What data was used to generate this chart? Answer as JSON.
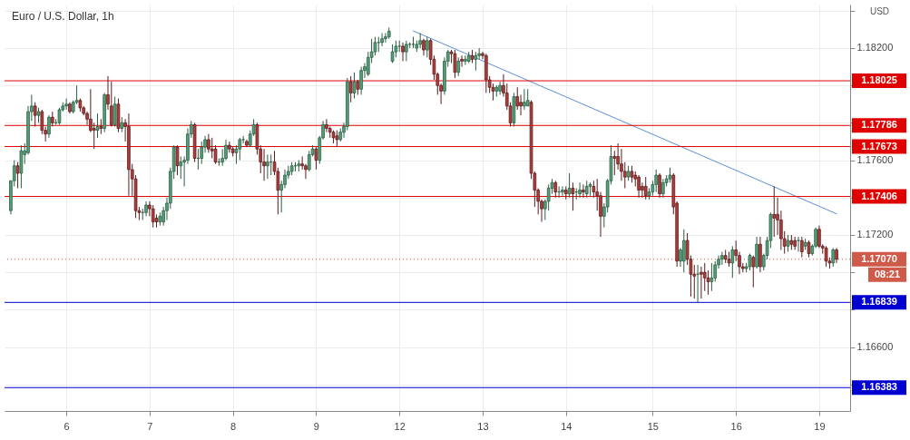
{
  "chart_data": {
    "type": "candlestick",
    "title": "Euro / U.S. Dollar, 1h",
    "ylabel": "USD",
    "categories": [
      null,
      null,
      null,
      null,
      null,
      null,
      null,
      null,
      null,
      null,
      null,
      null,
      null,
      null,
      null,
      null,
      "6",
      null,
      null,
      null,
      null,
      null,
      null,
      null,
      null,
      null,
      null,
      null,
      null,
      null,
      null,
      null,
      null,
      null,
      null,
      null,
      null,
      null,
      null,
      null,
      "7",
      null,
      null,
      null,
      null,
      null,
      null,
      null,
      null,
      null,
      null,
      null,
      null,
      null,
      null,
      null,
      null,
      null,
      null,
      null,
      null,
      null,
      null,
      null,
      "8",
      null,
      null,
      null,
      null,
      null,
      null,
      null,
      null,
      null,
      null,
      null,
      null,
      null,
      null,
      null,
      null,
      null,
      null,
      null,
      null,
      null,
      null,
      null,
      "9",
      null,
      null,
      null,
      null,
      null,
      null,
      null,
      null,
      null,
      null,
      null,
      null,
      null,
      null,
      null,
      null,
      null,
      null,
      null,
      null,
      null,
      null,
      null,
      "12",
      null,
      null,
      null,
      null,
      null,
      null,
      null,
      null,
      null,
      null,
      null,
      null,
      null,
      null,
      null,
      null,
      null,
      null,
      null,
      null,
      null,
      null,
      null,
      "13",
      null,
      null,
      null,
      null,
      null,
      null,
      null,
      null,
      null,
      null,
      null,
      null,
      null,
      null,
      null,
      null,
      null,
      null,
      null,
      null,
      null,
      null,
      null,
      "14",
      null,
      null,
      null,
      null,
      null,
      null,
      null,
      null,
      null,
      null,
      null,
      null,
      null,
      null,
      null,
      null,
      null,
      null,
      null,
      null,
      null,
      null,
      null,
      null,
      "15",
      null,
      null,
      null,
      null,
      null,
      null,
      null,
      null,
      null,
      null,
      null,
      null,
      null,
      null,
      null,
      null,
      null,
      null,
      null,
      null,
      null,
      null,
      null,
      "16",
      null,
      null,
      null,
      null,
      null,
      null,
      null,
      null,
      null,
      null,
      null,
      null,
      null,
      null,
      null,
      null,
      null,
      null,
      null,
      null,
      null,
      null,
      null,
      "19",
      null,
      null,
      null,
      null,
      null
    ],
    "ohlc": [
      [
        1.1733,
        1.1749,
        1.1731,
        1.1749
      ],
      [
        1.1749,
        1.176,
        1.1746,
        1.1757
      ],
      [
        1.1757,
        1.1759,
        1.1745,
        1.1753
      ],
      [
        1.1753,
        1.1768,
        1.1745,
        1.1765
      ],
      [
        1.1763,
        1.1769,
        1.1758,
        1.1765
      ],
      [
        1.1764,
        1.1789,
        1.1763,
        1.1786
      ],
      [
        1.1786,
        1.1795,
        1.1781,
        1.1789
      ],
      [
        1.1789,
        1.1791,
        1.1778,
        1.1784
      ],
      [
        1.1784,
        1.1788,
        1.178,
        1.1786
      ],
      [
        1.1786,
        1.1787,
        1.1774,
        1.1776
      ],
      [
        1.1776,
        1.1778,
        1.177,
        1.1774
      ],
      [
        1.1774,
        1.1784,
        1.1772,
        1.1783
      ],
      [
        1.1783,
        1.1786,
        1.1778,
        1.178
      ],
      [
        1.178,
        1.1782,
        1.1779,
        1.178
      ],
      [
        1.178,
        1.1788,
        1.1779,
        1.1787
      ],
      [
        1.1787,
        1.1791,
        1.1786,
        1.1789
      ],
      [
        1.1789,
        1.1793,
        1.1787,
        1.179
      ],
      [
        1.179,
        1.1791,
        1.1785,
        1.1786
      ],
      [
        1.1786,
        1.1792,
        1.1785,
        1.1791
      ],
      [
        1.1791,
        1.18,
        1.179,
        1.1792
      ],
      [
        1.1792,
        1.1793,
        1.1786,
        1.1788
      ],
      [
        1.1788,
        1.1789,
        1.1784,
        1.1785
      ],
      [
        1.1785,
        1.1786,
        1.1779,
        1.1782
      ],
      [
        1.1782,
        1.1798,
        1.1775,
        1.1776
      ],
      [
        1.1777,
        1.178,
        1.1766,
        1.1776
      ],
      [
        1.1776,
        1.1785,
        1.1772,
        1.1778
      ],
      [
        1.1778,
        1.1782,
        1.1774,
        1.1777
      ],
      [
        1.1777,
        1.1796,
        1.1775,
        1.1795
      ],
      [
        1.1795,
        1.1805,
        1.1787,
        1.179
      ],
      [
        1.1789,
        1.1802,
        1.1778,
        1.1779
      ],
      [
        1.1779,
        1.1794,
        1.1778,
        1.179
      ],
      [
        1.179,
        1.1793,
        1.1775,
        1.1777
      ],
      [
        1.1777,
        1.1783,
        1.1775,
        1.178
      ],
      [
        1.178,
        1.1782,
        1.177,
        1.1778
      ],
      [
        1.1778,
        1.1785,
        1.1741,
        1.1755
      ],
      [
        1.1755,
        1.1758,
        1.1741,
        1.175
      ],
      [
        1.175,
        1.1752,
        1.1729,
        1.1733
      ],
      [
        1.1733,
        1.1735,
        1.1728,
        1.1732
      ],
      [
        1.1732,
        1.1734,
        1.1728,
        1.1732
      ],
      [
        1.1732,
        1.1738,
        1.173,
        1.1736
      ],
      [
        1.1736,
        1.1738,
        1.173,
        1.1734
      ],
      [
        1.1734,
        1.1736,
        1.1724,
        1.1727
      ],
      [
        1.1729,
        1.1731,
        1.1724,
        1.1727
      ],
      [
        1.1727,
        1.1732,
        1.1725,
        1.173
      ],
      [
        1.1727,
        1.1735,
        1.1725,
        1.1733
      ],
      [
        1.1733,
        1.174,
        1.1728,
        1.1737
      ],
      [
        1.1737,
        1.1756,
        1.1734,
        1.1754
      ],
      [
        1.1754,
        1.1768,
        1.175,
        1.1767
      ],
      [
        1.1767,
        1.1768,
        1.1752,
        1.1757
      ],
      [
        1.1757,
        1.1762,
        1.175,
        1.1759
      ],
      [
        1.1759,
        1.1762,
        1.1746,
        1.176
      ],
      [
        1.176,
        1.1777,
        1.1758,
        1.1774
      ],
      [
        1.1774,
        1.1781,
        1.1772,
        1.1779
      ],
      [
        1.1779,
        1.178,
        1.1759,
        1.1761
      ],
      [
        1.1761,
        1.1766,
        1.1755,
        1.1761
      ],
      [
        1.1761,
        1.177,
        1.1758,
        1.1767
      ],
      [
        1.1767,
        1.1773,
        1.1764,
        1.1771
      ],
      [
        1.1771,
        1.1774,
        1.1764,
        1.1766
      ],
      [
        1.1766,
        1.1772,
        1.1761,
        1.1765
      ],
      [
        1.1766,
        1.1768,
        1.1758,
        1.1759
      ],
      [
        1.1759,
        1.1761,
        1.1757,
        1.1759
      ],
      [
        1.1759,
        1.1766,
        1.1757,
        1.1761
      ],
      [
        1.1761,
        1.1771,
        1.176,
        1.1768
      ],
      [
        1.1768,
        1.177,
        1.1764,
        1.1766
      ],
      [
        1.1766,
        1.1767,
        1.1762,
        1.1764
      ],
      [
        1.1764,
        1.1768,
        1.1758,
        1.1766
      ],
      [
        1.1766,
        1.1772,
        1.176,
        1.1771
      ],
      [
        1.1771,
        1.1773,
        1.1769,
        1.1771
      ],
      [
        1.177,
        1.1771,
        1.1767,
        1.1768
      ],
      [
        1.1768,
        1.1776,
        1.1767,
        1.1774
      ],
      [
        1.1774,
        1.1782,
        1.1773,
        1.1779
      ],
      [
        1.1779,
        1.178,
        1.1763,
        1.1766
      ],
      [
        1.1766,
        1.1768,
        1.1753,
        1.1759
      ],
      [
        1.1759,
        1.1766,
        1.1749,
        1.1757
      ],
      [
        1.1757,
        1.1763,
        1.175,
        1.1759
      ],
      [
        1.1759,
        1.1763,
        1.1752,
        1.1759
      ],
      [
        1.1759,
        1.1765,
        1.1752,
        1.1754
      ],
      [
        1.1754,
        1.1756,
        1.1731,
        1.1744
      ],
      [
        1.1744,
        1.1749,
        1.1732,
        1.1747
      ],
      [
        1.1747,
        1.1755,
        1.1745,
        1.1752
      ],
      [
        1.1752,
        1.1757,
        1.175,
        1.1754
      ],
      [
        1.1754,
        1.1759,
        1.1752,
        1.1757
      ],
      [
        1.1757,
        1.1759,
        1.1754,
        1.1757
      ],
      [
        1.1757,
        1.176,
        1.1754,
        1.1758
      ],
      [
        1.1758,
        1.1762,
        1.1755,
        1.1757
      ],
      [
        1.1757,
        1.1758,
        1.175,
        1.1755
      ],
      [
        1.1755,
        1.1765,
        1.1754,
        1.1763
      ],
      [
        1.1763,
        1.1768,
        1.1762,
        1.1766
      ],
      [
        1.1766,
        1.1767,
        1.1755,
        1.176
      ],
      [
        1.176,
        1.1773,
        1.1758,
        1.1772
      ],
      [
        1.1772,
        1.1781,
        1.1771,
        1.1779
      ],
      [
        1.1779,
        1.1782,
        1.1775,
        1.1777
      ],
      [
        1.1777,
        1.1778,
        1.1772,
        1.1775
      ],
      [
        1.1775,
        1.1776,
        1.1769,
        1.1772
      ],
      [
        1.1773,
        1.1776,
        1.1767,
        1.1771
      ],
      [
        1.1771,
        1.1777,
        1.177,
        1.1775
      ],
      [
        1.1775,
        1.178,
        1.1772,
        1.1778
      ],
      [
        1.1778,
        1.1804,
        1.1776,
        1.1802
      ],
      [
        1.1802,
        1.1805,
        1.1791,
        1.1796
      ],
      [
        1.1796,
        1.1807,
        1.1793,
        1.1802
      ],
      [
        1.1802,
        1.1803,
        1.1795,
        1.1798
      ],
      [
        1.1798,
        1.181,
        1.1795,
        1.1808
      ],
      [
        1.1808,
        1.1812,
        1.1804,
        1.181
      ],
      [
        1.1806,
        1.1818,
        1.1805,
        1.1815
      ],
      [
        1.1815,
        1.1825,
        1.1812,
        1.1818
      ],
      [
        1.1818,
        1.1826,
        1.1816,
        1.1823
      ],
      [
        1.1823,
        1.1826,
        1.1818,
        1.1823
      ],
      [
        1.1823,
        1.1828,
        1.1821,
        1.1825
      ],
      [
        1.1825,
        1.1828,
        1.1823,
        1.1826
      ],
      [
        1.1826,
        1.1831,
        1.1825,
        1.1829
      ],
      [
        1.1813,
        1.1822,
        1.1812,
        1.1818
      ],
      [
        1.1818,
        1.1824,
        1.1815,
        1.1821
      ],
      [
        1.1821,
        1.1824,
        1.1818,
        1.1821
      ],
      [
        1.1821,
        1.1823,
        1.1813,
        1.1818
      ],
      [
        1.1818,
        1.1824,
        1.1813,
        1.1822
      ],
      [
        1.1822,
        1.1823,
        1.182,
        1.1822
      ],
      [
        1.1822,
        1.1826,
        1.182,
        1.1822
      ],
      [
        1.182,
        1.1824,
        1.1818,
        1.1822
      ],
      [
        1.1822,
        1.1828,
        1.182,
        1.1824
      ],
      [
        1.1824,
        1.1825,
        1.1816,
        1.1819
      ],
      [
        1.1819,
        1.1826,
        1.1815,
        1.1824
      ],
      [
        1.1824,
        1.1825,
        1.1811,
        1.1814
      ],
      [
        1.1814,
        1.1816,
        1.1803,
        1.1806
      ],
      [
        1.1806,
        1.1807,
        1.1795,
        1.18
      ],
      [
        1.18,
        1.1801,
        1.179,
        1.1797
      ],
      [
        1.1797,
        1.1815,
        1.1795,
        1.1813
      ],
      [
        1.1813,
        1.1819,
        1.181,
        1.1818
      ],
      [
        1.1818,
        1.1819,
        1.1812,
        1.1817
      ],
      [
        1.1817,
        1.1819,
        1.1804,
        1.1807
      ],
      [
        1.1807,
        1.1815,
        1.1805,
        1.1813
      ],
      [
        1.1814,
        1.1816,
        1.181,
        1.1813
      ],
      [
        1.1813,
        1.1816,
        1.1811,
        1.1814
      ],
      [
        1.1813,
        1.1818,
        1.1812,
        1.1816
      ],
      [
        1.1816,
        1.1819,
        1.1812,
        1.1814
      ],
      [
        1.1814,
        1.1818,
        1.1808,
        1.1816
      ],
      [
        1.1816,
        1.182,
        1.1814,
        1.1817
      ],
      [
        1.1817,
        1.1818,
        1.1814,
        1.1816
      ],
      [
        1.1816,
        1.1817,
        1.1796,
        1.1803
      ],
      [
        1.1803,
        1.1805,
        1.1796,
        1.1799
      ],
      [
        1.1799,
        1.1801,
        1.1792,
        1.1797
      ],
      [
        1.1797,
        1.18,
        1.1794,
        1.1799
      ],
      [
        1.1797,
        1.1802,
        1.1795,
        1.18
      ],
      [
        1.18,
        1.1806,
        1.1794,
        1.1796
      ],
      [
        1.1796,
        1.1801,
        1.1787,
        1.1789
      ],
      [
        1.1789,
        1.1791,
        1.1778,
        1.178
      ],
      [
        1.178,
        1.1796,
        1.1778,
        1.1794
      ],
      [
        1.1794,
        1.1799,
        1.1787,
        1.1789
      ],
      [
        1.1791,
        1.1795,
        1.1784,
        1.1789
      ],
      [
        1.1789,
        1.1798,
        1.1787,
        1.1791
      ],
      [
        1.1789,
        1.1798,
        1.1789,
        1.1792
      ],
      [
        1.1791,
        1.1792,
        1.175,
        1.1753
      ],
      [
        1.1753,
        1.1754,
        1.1735,
        1.1744
      ],
      [
        1.1744,
        1.1745,
        1.1731,
        1.1738
      ],
      [
        1.1738,
        1.1739,
        1.1727,
        1.1734
      ],
      [
        1.1734,
        1.1739,
        1.1728,
        1.1738
      ],
      [
        1.1738,
        1.1747,
        1.1733,
        1.1745
      ],
      [
        1.1745,
        1.175,
        1.1742,
        1.1748
      ],
      [
        1.1748,
        1.1749,
        1.174,
        1.1743
      ],
      [
        1.1743,
        1.1746,
        1.174,
        1.1743
      ],
      [
        1.1743,
        1.1746,
        1.1741,
        1.1744
      ],
      [
        1.1744,
        1.1746,
        1.1739,
        1.1742
      ],
      [
        1.1742,
        1.1753,
        1.174,
        1.1745
      ],
      [
        1.1745,
        1.1748,
        1.1733,
        1.1742
      ],
      [
        1.1743,
        1.1745,
        1.1739,
        1.1743
      ],
      [
        1.1742,
        1.1748,
        1.174,
        1.1744
      ],
      [
        1.1744,
        1.1747,
        1.174,
        1.1743
      ],
      [
        1.1742,
        1.1749,
        1.174,
        1.1746
      ],
      [
        1.1746,
        1.1748,
        1.1741,
        1.1747
      ],
      [
        1.1746,
        1.1749,
        1.174,
        1.1743
      ],
      [
        1.1743,
        1.175,
        1.1733,
        1.1741
      ],
      [
        1.1741,
        1.1743,
        1.1719,
        1.173
      ],
      [
        1.173,
        1.1737,
        1.1724,
        1.1735
      ],
      [
        1.1735,
        1.175,
        1.1732,
        1.1749
      ],
      [
        1.1749,
        1.1768,
        1.1747,
        1.1762
      ],
      [
        1.1762,
        1.1765,
        1.1752,
        1.1761
      ],
      [
        1.1762,
        1.1769,
        1.1755,
        1.1758
      ],
      [
        1.1758,
        1.1766,
        1.1749,
        1.1754
      ],
      [
        1.1754,
        1.1759,
        1.1745,
        1.1751
      ],
      [
        1.1751,
        1.1757,
        1.1749,
        1.1754
      ],
      [
        1.1754,
        1.1757,
        1.1748,
        1.1751
      ],
      [
        1.1752,
        1.1754,
        1.1746,
        1.175
      ],
      [
        1.1751,
        1.1752,
        1.174,
        1.1744
      ],
      [
        1.1746,
        1.1748,
        1.174,
        1.1744
      ],
      [
        1.1746,
        1.1751,
        1.1739,
        1.1741
      ],
      [
        1.1741,
        1.1745,
        1.1739,
        1.1743
      ],
      [
        1.1743,
        1.1749,
        1.1741,
        1.1747
      ],
      [
        1.1747,
        1.1755,
        1.1743,
        1.1752
      ],
      [
        1.1752,
        1.1753,
        1.174,
        1.1742
      ],
      [
        1.1742,
        1.175,
        1.174,
        1.1748
      ],
      [
        1.1748,
        1.1752,
        1.1746,
        1.175
      ],
      [
        1.175,
        1.1756,
        1.1748,
        1.1752
      ],
      [
        1.1752,
        1.1753,
        1.1731,
        1.1735
      ],
      [
        1.1737,
        1.1738,
        1.1703,
        1.1706
      ],
      [
        1.1706,
        1.1713,
        1.1703,
        1.1712
      ],
      [
        1.1706,
        1.1723,
        1.17,
        1.1717
      ],
      [
        1.1717,
        1.1721,
        1.1704,
        1.1707
      ],
      [
        1.1707,
        1.1709,
        1.1687,
        1.1699
      ],
      [
        1.1699,
        1.1704,
        1.1686,
        1.1698
      ],
      [
        1.1699,
        1.1704,
        1.1684,
        1.1699
      ],
      [
        1.17,
        1.1703,
        1.1686,
        1.1699
      ],
      [
        1.17,
        1.1705,
        1.169,
        1.1697
      ],
      [
        1.1697,
        1.1701,
        1.1688,
        1.1695
      ],
      [
        1.1695,
        1.1705,
        1.169,
        1.1697
      ],
      [
        1.1697,
        1.1706,
        1.1695,
        1.1704
      ],
      [
        1.1704,
        1.1709,
        1.1702,
        1.1707
      ],
      [
        1.1707,
        1.1711,
        1.1704,
        1.1709
      ],
      [
        1.1709,
        1.1712,
        1.1705,
        1.1707
      ],
      [
        1.1707,
        1.1711,
        1.1703,
        1.1705
      ],
      [
        1.1705,
        1.1714,
        1.1697,
        1.1712
      ],
      [
        1.1712,
        1.1717,
        1.1706,
        1.1709
      ],
      [
        1.1709,
        1.1711,
        1.1699,
        1.1703
      ],
      [
        1.1703,
        1.1705,
        1.17,
        1.1702
      ],
      [
        1.1702,
        1.1705,
        1.17,
        1.1703
      ],
      [
        1.1703,
        1.171,
        1.1701,
        1.1709
      ],
      [
        1.1708,
        1.1709,
        1.1692,
        1.1703
      ],
      [
        1.1703,
        1.1719,
        1.1702,
        1.1715
      ],
      [
        1.1715,
        1.1719,
        1.17,
        1.1703
      ],
      [
        1.1703,
        1.171,
        1.1701,
        1.1709
      ],
      [
        1.1709,
        1.1719,
        1.1707,
        1.1717
      ],
      [
        1.1717,
        1.1732,
        1.1713,
        1.1731
      ],
      [
        1.1731,
        1.1746,
        1.1719,
        1.1729
      ],
      [
        1.1731,
        1.174,
        1.172,
        1.1728
      ],
      [
        1.1728,
        1.1733,
        1.1712,
        1.1718
      ],
      [
        1.1718,
        1.1722,
        1.171,
        1.1714
      ],
      [
        1.1714,
        1.172,
        1.1711,
        1.1717
      ],
      [
        1.1717,
        1.172,
        1.1712,
        1.1715
      ],
      [
        1.1717,
        1.1719,
        1.1712,
        1.1714
      ],
      [
        1.1717,
        1.1719,
        1.1711,
        1.1717
      ],
      [
        1.1717,
        1.1719,
        1.1708,
        1.1711
      ],
      [
        1.1714,
        1.1718,
        1.1712,
        1.1716
      ],
      [
        1.1716,
        1.1717,
        1.1708,
        1.171
      ],
      [
        1.171,
        1.1715,
        1.1709,
        1.1714
      ],
      [
        1.1714,
        1.1724,
        1.1713,
        1.1723
      ],
      [
        1.1723,
        1.1725,
        1.1713,
        1.1714
      ],
      [
        1.1714,
        1.1715,
        1.171,
        1.1713
      ],
      [
        1.1713,
        1.1714,
        1.1703,
        1.1706
      ],
      [
        1.1706,
        1.1708,
        1.1702,
        1.1705
      ],
      [
        1.1705,
        1.1713,
        1.1703,
        1.1712
      ],
      [
        1.1712,
        1.1713,
        1.1705,
        1.1707
      ]
    ],
    "series": [
      {
        "type": "line",
        "values": [
          null,
          null,
          null,
          null,
          null,
          null,
          null,
          null,
          null,
          null,
          null,
          null,
          null,
          null,
          null,
          null,
          null,
          null,
          null,
          null,
          null,
          null,
          null,
          null,
          null,
          null,
          null,
          null,
          null,
          null,
          null,
          null,
          null,
          null,
          null,
          null,
          null,
          null,
          null,
          null,
          null,
          null,
          null,
          null,
          null,
          null,
          null,
          null,
          null,
          null,
          null,
          null,
          null,
          null,
          null,
          null,
          null,
          null,
          null,
          null,
          null,
          null,
          null,
          null,
          null,
          null,
          null,
          null,
          null,
          null,
          null,
          null,
          null,
          null,
          null,
          null,
          null,
          null,
          null,
          null,
          null,
          null,
          null,
          null,
          null,
          null,
          null,
          null,
          null,
          null,
          null,
          null,
          null,
          null,
          null,
          null,
          null,
          null,
          null,
          null,
          null,
          null,
          null,
          null,
          null,
          null,
          null,
          null,
          null,
          null,
          null,
          null,
          null,
          null,
          null,
          null,
          1.18292,
          null,
          null,
          null,
          null,
          null,
          null,
          null,
          null,
          null,
          null,
          null,
          null,
          null,
          null,
          null,
          null,
          null,
          null,
          null,
          null,
          null,
          null,
          null,
          null,
          null,
          null,
          null,
          null,
          null,
          null,
          null,
          null,
          null,
          null,
          null,
          null,
          null,
          null,
          null,
          null,
          null,
          null,
          null,
          null,
          null,
          null,
          null,
          null,
          null,
          null,
          null,
          null,
          null,
          null,
          null,
          null,
          null,
          null,
          null,
          null,
          null,
          null,
          null,
          null,
          null,
          null,
          null,
          null,
          null,
          null,
          null,
          null,
          null,
          null,
          null,
          null,
          null,
          null,
          null,
          null,
          null,
          null,
          null,
          null,
          null,
          null,
          null,
          null,
          null,
          null,
          null,
          null,
          null,
          null,
          null,
          null,
          null,
          null,
          null,
          null,
          null,
          null,
          null,
          null,
          null,
          null,
          null,
          null,
          null,
          null,
          null,
          null,
          null,
          null,
          null,
          null,
          null,
          null,
          null,
          null,
          null,
          1.17313
        ],
        "color": "#5b8fd6"
      }
    ],
    "ylim": [
      1.16258,
      1.18433
    ],
    "yticks": [
      {
        "value": 1.164,
        "label": null
      },
      {
        "value": 1.166,
        "label": "1.16600"
      },
      {
        "value": 1.168,
        "label": null
      },
      {
        "value": 1.17,
        "label": null
      },
      {
        "value": 1.172,
        "label": "1.17200"
      },
      {
        "value": 1.174,
        "label": null
      },
      {
        "value": 1.176,
        "label": "1.17600"
      },
      {
        "value": 1.178,
        "label": null
      },
      {
        "value": 1.18,
        "label": null
      },
      {
        "value": 1.182,
        "label": "1.18200"
      },
      {
        "value": 1.184,
        "label": null
      }
    ],
    "grid": true,
    "ref_lines": [
      {
        "axis": "y",
        "value": 1.18025,
        "label": "1.18025",
        "color": "#e00000"
      },
      {
        "axis": "y",
        "value": 1.17786,
        "label": "1.17786",
        "color": "#e00000"
      },
      {
        "axis": "y",
        "value": 1.17673,
        "label": "1.17673",
        "color": "#e00000"
      },
      {
        "axis": "y",
        "value": 1.17406,
        "label": "1.17406",
        "color": "#e00000"
      },
      {
        "axis": "y",
        "value": 1.1707,
        "label": "1.17070",
        "color": "#cf5a4a",
        "line_style": "dotted"
      },
      {
        "axis": "y",
        "value": 1.16839,
        "label": "1.16839",
        "color": "#0000d0"
      },
      {
        "axis": "y",
        "value": 1.16383,
        "label": "1.16383",
        "color": "#0000d0"
      }
    ],
    "annotations": [
      "08:21"
    ]
  }
}
